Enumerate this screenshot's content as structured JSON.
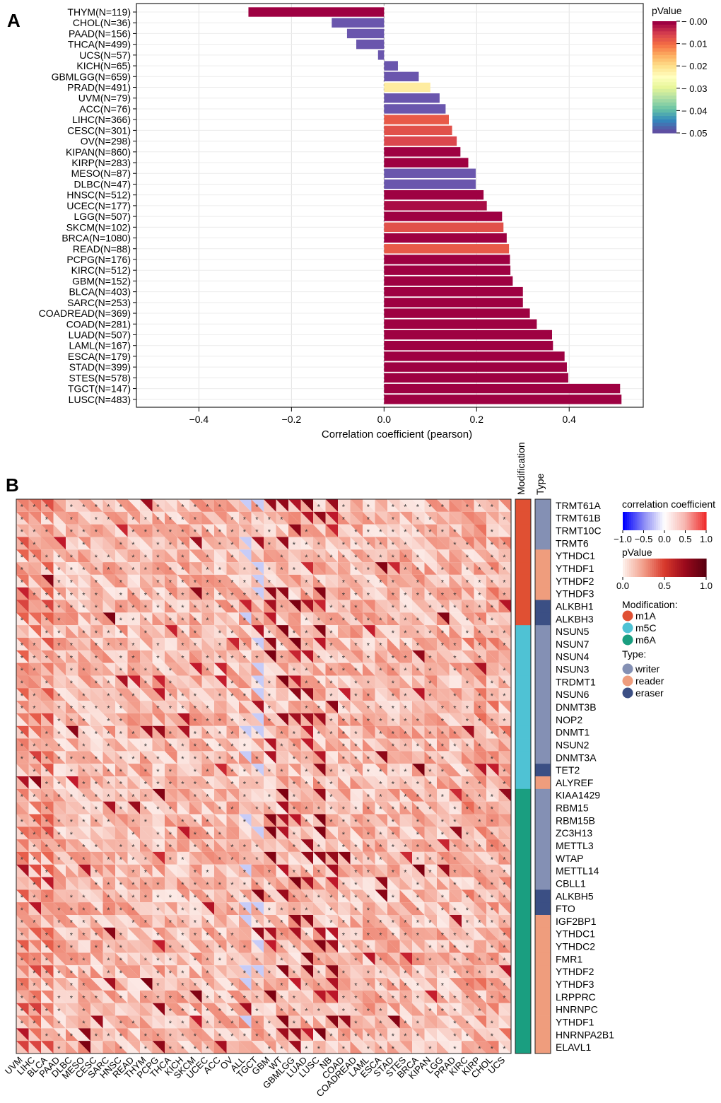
{
  "chart_data": [
    {
      "panel": "A",
      "type": "bar",
      "orientation": "horizontal",
      "xlabel": "Correlation coefficient (pearson)",
      "xlim": [
        -0.535,
        0.56
      ],
      "xticks": [
        -0.4,
        -0.2,
        0.0,
        0.2,
        0.4
      ],
      "xtick_labels": [
        "−0.4",
        "−0.2",
        "0.0",
        "0.2",
        "0.4"
      ],
      "grid": true,
      "categories": [
        "THYM(N=119)",
        "CHOL(N=36)",
        "PAAD(N=156)",
        "THCA(N=499)",
        "UCS(N=57)",
        "KICH(N=65)",
        "GBMLGG(N=659)",
        "PRAD(N=491)",
        "UVM(N=79)",
        "ACC(N=76)",
        "LIHC(N=366)",
        "CESC(N=301)",
        "OV(N=298)",
        "KIPAN(N=860)",
        "KIRP(N=283)",
        "MESO(N=87)",
        "DLBC(N=47)",
        "HNSC(N=512)",
        "UCEC(N=177)",
        "LGG(N=507)",
        "SKCM(N=102)",
        "BRCA(N=1080)",
        "READ(N=88)",
        "PCPG(N=176)",
        "KIRC(N=512)",
        "GBM(N=152)",
        "BLCA(N=403)",
        "SARC(N=253)",
        "COADREAD(N=369)",
        "COAD(N=281)",
        "LUAD(N=507)",
        "LAML(N=167)",
        "ESCA(N=179)",
        "STAD(N=399)",
        "STES(N=578)",
        "TGCT(N=147)",
        "LUSC(N=483)"
      ],
      "values": [
        -0.293,
        -0.113,
        -0.08,
        -0.06,
        -0.013,
        0.03,
        0.075,
        0.1,
        0.12,
        0.133,
        0.14,
        0.147,
        0.157,
        0.165,
        0.182,
        0.198,
        0.198,
        0.215,
        0.222,
        0.255,
        0.258,
        0.265,
        0.27,
        0.272,
        0.273,
        0.278,
        0.3,
        0.3,
        0.315,
        0.33,
        0.363,
        0.365,
        0.39,
        0.395,
        0.398,
        0.51,
        0.513
      ],
      "pvalues": [
        0.0,
        0.05,
        0.05,
        0.05,
        0.05,
        0.05,
        0.05,
        0.022,
        0.05,
        0.05,
        0.008,
        0.007,
        0.006,
        0.0,
        0.0,
        0.05,
        0.05,
        0.0,
        0.001,
        0.0,
        0.007,
        0.0,
        0.008,
        0.0,
        0.0,
        0.0,
        0.0,
        0.0,
        0.0,
        0.0,
        0.0,
        0.0,
        0.0,
        0.0,
        0.0,
        0.0,
        0.0
      ],
      "legend": {
        "title": "pValue",
        "ticks": [
          "0.00",
          "0.01",
          "0.02",
          "0.03",
          "0.04",
          "0.05"
        ],
        "colors": [
          "#9e0142",
          "#d53e4f",
          "#f46d43",
          "#fdae61",
          "#fee08b",
          "#ffffbf",
          "#e6f598",
          "#abdda4",
          "#66c2a5",
          "#3288bd",
          "#5e4fa2"
        ],
        "placement": "right"
      },
      "bar_colors": {
        "significant": "#a5114a",
        "nonsignificant": "#6a56ad"
      }
    },
    {
      "panel": "B",
      "type": "heatmap",
      "cell_style": "split-triangle: upper triangle = correlation coefficient, lower triangle = pValue; * marks significance",
      "columns": [
        "UVM",
        "LIHC",
        "BLCA",
        "PAAD",
        "DLBC",
        "MESO",
        "CESC",
        "SARC",
        "HNSC",
        "READ",
        "THYM",
        "PCPG",
        "THCA",
        "KICH",
        "SKCM",
        "UCEC",
        "ACC",
        "OV",
        "ALL",
        "TGCT",
        "GBM",
        "WT",
        "GBMLGG",
        "LUAD",
        "LUSC",
        "NB",
        "COAD",
        "COADREAD",
        "LAML",
        "ESCA",
        "STAD",
        "STES",
        "BRCA",
        "KIPAN",
        "LGG",
        "PRAD",
        "KIRC",
        "KIRP",
        "CHOL",
        "UCS"
      ],
      "rows": [
        "TRMT61A",
        "TRMT61B",
        "TRMT10C",
        "TRMT6",
        "YTHDC1",
        "YTHDF1",
        "YTHDF2",
        "YTHDF3",
        "ALKBH1",
        "ALKBH3",
        "NSUN5",
        "NSUN7",
        "NSUN4",
        "NSUN3",
        "TRDMT1",
        "NSUN6",
        "DNMT3B",
        "NOP2",
        "DNMT1",
        "NSUN2",
        "DNMT3A",
        "TET2",
        "ALYREF",
        "KIAA1429",
        "RBM15",
        "RBM15B",
        "ZC3H13",
        "METTL3",
        "WTAP",
        "METTL14",
        "CBLL1",
        "ALKBH5",
        "FTO",
        "IGF2BP1",
        "YTHDC1",
        "YTHDC2",
        "FMR1",
        "YTHDF2",
        "YTHDF3",
        "LRPPRC",
        "HNRNPC",
        "YTHDF1",
        "HNRNPA2B1",
        "ELAVL1"
      ],
      "modification_track": {
        "label": "Modification",
        "values": [
          "m1A",
          "m1A",
          "m1A",
          "m1A",
          "m1A",
          "m1A",
          "m1A",
          "m1A",
          "m1A",
          "m1A",
          "m5C",
          "m5C",
          "m5C",
          "m5C",
          "m5C",
          "m5C",
          "m5C",
          "m5C",
          "m5C",
          "m5C",
          "m5C",
          "m5C",
          "m5C",
          "m6A",
          "m6A",
          "m6A",
          "m6A",
          "m6A",
          "m6A",
          "m6A",
          "m6A",
          "m6A",
          "m6A",
          "m6A",
          "m6A",
          "m6A",
          "m6A",
          "m6A",
          "m6A",
          "m6A",
          "m6A",
          "m6A",
          "m6A",
          "m6A"
        ]
      },
      "type_track": {
        "label": "Type",
        "values": [
          "writer",
          "writer",
          "writer",
          "writer",
          "reader",
          "reader",
          "reader",
          "reader",
          "eraser",
          "eraser",
          "writer",
          "writer",
          "writer",
          "writer",
          "writer",
          "writer",
          "writer",
          "writer",
          "writer",
          "writer",
          "writer",
          "eraser",
          "reader",
          "writer",
          "writer",
          "writer",
          "writer",
          "writer",
          "writer",
          "writer",
          "writer",
          "eraser",
          "eraser",
          "reader",
          "reader",
          "reader",
          "reader",
          "reader",
          "reader",
          "reader",
          "reader",
          "reader",
          "reader",
          "reader"
        ]
      },
      "legend": {
        "corr_title": "correlation coefficient",
        "corr_ticks": [
          "−1.0",
          "−0.5",
          "0.0",
          "0.5",
          "1.0"
        ],
        "p_title": "pValue",
        "p_ticks": [
          "0.0",
          "0.5",
          "1.0"
        ],
        "modification_title": "Modification:",
        "modification_items": [
          {
            "label": "m1A",
            "color": "#e05033"
          },
          {
            "label": "m5C",
            "color": "#4fc2d4"
          },
          {
            "label": "m6A",
            "color": "#1a9e80"
          }
        ],
        "type_title": "Type:",
        "type_items": [
          {
            "label": "writer",
            "color": "#8490b4"
          },
          {
            "label": "reader",
            "color": "#ef9d7d"
          },
          {
            "label": "eraser",
            "color": "#3b4f84"
          }
        ]
      },
      "star_symbol": "*"
    }
  ],
  "panel_labels": {
    "a": "A",
    "b": "B"
  }
}
